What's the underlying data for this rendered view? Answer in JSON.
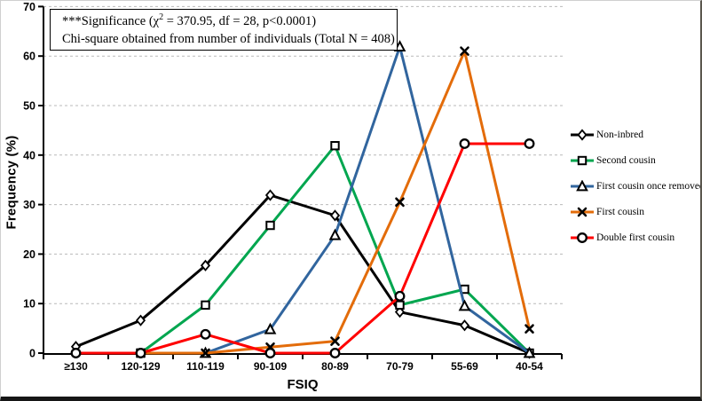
{
  "annotation": {
    "line1_pre": "***Significance (χ",
    "line1_sup": "2",
    "line1_post": " = 370.95, df = 28, p<0.0001)",
    "line2": "Chi-square obtained from number of individuals (Total N = 408)"
  },
  "chart_data": {
    "type": "line",
    "xlabel": "FSIQ",
    "ylabel": "Frequency (%)",
    "ylim": [
      0,
      70
    ],
    "yticks": [
      0,
      10,
      20,
      30,
      40,
      50,
      60,
      70
    ],
    "grid": "horizontal-dashed",
    "grid_color": "#b9b9b9",
    "legend_position": "right",
    "categories": [
      "≥130",
      "120-129",
      "110-119",
      "90-109",
      "80-89",
      "70-79",
      "55-69",
      "40-54"
    ],
    "series": [
      {
        "name": "Non-inbred",
        "color": "#000000",
        "marker": "diamond",
        "values": [
          1.3,
          6.6,
          17.7,
          31.9,
          27.8,
          8.3,
          5.6,
          0
        ]
      },
      {
        "name": "Second cousin",
        "color": "#00A64F",
        "marker": "square",
        "values": [
          null,
          0,
          9.7,
          25.8,
          41.9,
          9.7,
          12.9,
          0
        ]
      },
      {
        "name": "First cousin once removed",
        "color": "#31659E",
        "marker": "triangle",
        "values": [
          null,
          null,
          0,
          4.8,
          23.8,
          61.9,
          9.5,
          0
        ]
      },
      {
        "name": "First cousin",
        "color": "#E36C0A",
        "marker": "x",
        "values": [
          null,
          0,
          0,
          1.2,
          2.4,
          30.5,
          61.0,
          4.9
        ]
      },
      {
        "name": "Double first cousin",
        "color": "#FF0000",
        "marker": "circle",
        "values": [
          0,
          0,
          3.8,
          0,
          0,
          11.5,
          42.3,
          42.3
        ]
      }
    ]
  }
}
